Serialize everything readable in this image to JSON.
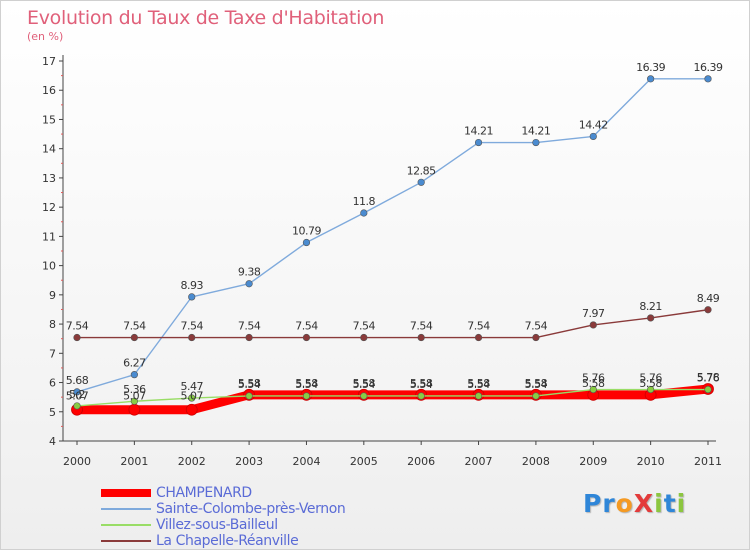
{
  "title": "Evolution du Taux de Taxe d'Habitation",
  "subtitle": "(en %)",
  "logo": {
    "text": "ProXiti",
    "letters": [
      {
        "ch": "P",
        "color": "#2f86d8"
      },
      {
        "ch": "r",
        "color": "#2f86d8"
      },
      {
        "ch": "o",
        "color": "#f59a23"
      },
      {
        "ch": "X",
        "color": "#e33b3b"
      },
      {
        "ch": "i",
        "color": "#8cc63f"
      },
      {
        "ch": "t",
        "color": "#2f86d8"
      },
      {
        "ch": "i",
        "color": "#8cc63f"
      }
    ]
  },
  "chart_data": {
    "type": "line",
    "title": "Evolution du Taux de Taxe d'Habitation",
    "subtitle": "(en %)",
    "xlabel": "",
    "ylabel": "",
    "x": [
      "2000",
      "2001",
      "2002",
      "2003",
      "2004",
      "2005",
      "2006",
      "2007",
      "2008",
      "2009",
      "2010",
      "2011"
    ],
    "ylim": [
      4,
      17
    ],
    "yticks": [
      4,
      5,
      6,
      7,
      8,
      9,
      10,
      11,
      12,
      13,
      14,
      15,
      16,
      17
    ],
    "grid": false,
    "legend_position": "bottom-left",
    "series": [
      {
        "name": "CHAMPENARD",
        "color": "#ff0000",
        "marker": "#ff0000",
        "values": [
          5.07,
          5.07,
          5.07,
          5.58,
          5.58,
          5.58,
          5.58,
          5.58,
          5.58,
          5.58,
          5.58,
          5.78
        ],
        "labels": [
          "5.07",
          "5.07",
          "5.07",
          "5.58",
          "5.58",
          "5.58",
          "5.58",
          "5.58",
          "5.58",
          "5.58",
          "5.58",
          "5.78"
        ]
      },
      {
        "name": "Sainte-Colombe-près-Vernon",
        "color": "#7faadc",
        "marker": "#4a8bd0",
        "values": [
          5.68,
          6.27,
          8.93,
          9.38,
          10.79,
          11.8,
          12.85,
          14.21,
          14.21,
          14.42,
          16.39,
          16.39
        ],
        "labels": [
          "5.68",
          "6.27",
          "8.93",
          "9.38",
          "10.79",
          "11.8",
          "12.85",
          "14.21",
          "14.21",
          "14.42",
          "16.39",
          "16.39"
        ]
      },
      {
        "name": "Villez-sous-Bailleul",
        "color": "#99dd66",
        "marker": "#88cc44",
        "values": [
          5.2,
          5.36,
          5.47,
          5.54,
          5.54,
          5.54,
          5.54,
          5.54,
          5.54,
          5.76,
          5.76,
          5.76
        ],
        "labels": [
          "5.2",
          "5.36",
          "5.47",
          "5.54",
          "5.54",
          "5.54",
          "5.54",
          "5.54",
          "5.54",
          "5.76",
          "5.76",
          "5.76"
        ]
      },
      {
        "name": "La Chapelle-Réanville",
        "color": "#8a3a3a",
        "marker": "#8a3a3a",
        "values": [
          7.54,
          7.54,
          7.54,
          7.54,
          7.54,
          7.54,
          7.54,
          7.54,
          7.54,
          7.97,
          8.21,
          8.49
        ],
        "labels": [
          "7.54",
          "7.54",
          "7.54",
          "7.54",
          "7.54",
          "7.54",
          "7.54",
          "7.54",
          "7.54",
          "7.97",
          "8.21",
          "8.49"
        ]
      }
    ]
  }
}
